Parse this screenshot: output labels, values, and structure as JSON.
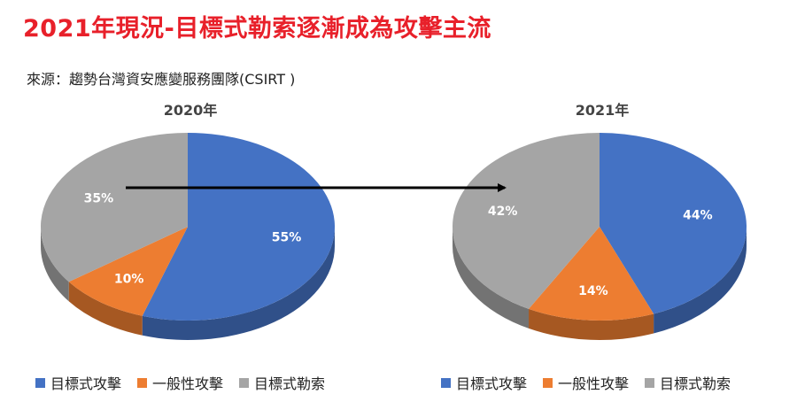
{
  "header": {
    "title": "2021年現況-目標式勒索逐漸成為攻擊主流",
    "source": "來源：趨勢台灣資安應變服務團隊(CSIRT )"
  },
  "colors": {
    "blue": "#4472c4",
    "orange": "#ed7d31",
    "gray": "#a5a5a5",
    "title_red": "#e8202a"
  },
  "chart_data": [
    {
      "type": "pie",
      "title": "2020年",
      "slices": [
        {
          "label": "目標式攻擊",
          "value": 55,
          "display": "55%",
          "color": "#4472c4"
        },
        {
          "label": "一般性攻擊",
          "value": 10,
          "display": "10%",
          "color": "#ed7d31"
        },
        {
          "label": "目標式勒索",
          "value": 35,
          "display": "35%",
          "color": "#a5a5a5"
        }
      ],
      "legend": [
        "目標式攻擊",
        "一般性攻擊",
        "目標式勒索"
      ],
      "legend_position": "bottom"
    },
    {
      "type": "pie",
      "title": "2021年",
      "slices": [
        {
          "label": "目標式攻擊",
          "value": 44,
          "display": "44%",
          "color": "#4472c4"
        },
        {
          "label": "一般性攻擊",
          "value": 14,
          "display": "14%",
          "color": "#ed7d31"
        },
        {
          "label": "目標式勒索",
          "value": 42,
          "display": "42%",
          "color": "#a5a5a5"
        }
      ],
      "legend": [
        "目標式攻擊",
        "一般性攻擊",
        "目標式勒索"
      ],
      "legend_position": "bottom"
    }
  ]
}
